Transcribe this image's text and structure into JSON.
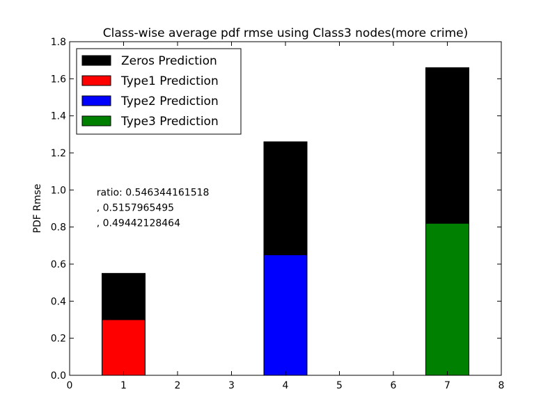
{
  "chart_data": {
    "type": "bar",
    "title": "Class-wise average pdf rmse using Class3 nodes(more crime)",
    "xlabel": "",
    "ylabel": "PDF Rmse",
    "xlim": [
      0,
      8
    ],
    "ylim": [
      0,
      1.8
    ],
    "xticks": [
      0,
      1,
      2,
      3,
      4,
      5,
      6,
      7,
      8
    ],
    "yticks": [
      0.0,
      0.2,
      0.4,
      0.6,
      0.8,
      1.0,
      1.2,
      1.4,
      1.6,
      1.8
    ],
    "bar_width": 0.8,
    "grid": false,
    "legend_position": "top-left",
    "series": [
      {
        "name": "Zeros Prediction",
        "color": "#000000",
        "x": [
          1,
          4,
          7
        ],
        "values": [
          0.55,
          1.26,
          1.66
        ]
      },
      {
        "name": "Type1 Prediction",
        "color": "#ff0000",
        "x": [
          1
        ],
        "values": [
          0.3
        ]
      },
      {
        "name": "Type2 Prediction",
        "color": "#0000ff",
        "x": [
          4
        ],
        "values": [
          0.65
        ]
      },
      {
        "name": "Type3 Prediction",
        "color": "#008000",
        "x": [
          7
        ],
        "values": [
          0.82
        ]
      }
    ],
    "annotation": {
      "x": 0.5,
      "y": 0.97,
      "lines": [
        "ratio: 0.546344161518",
        ", 0.5157965495",
        ", 0.49442128464"
      ]
    }
  }
}
